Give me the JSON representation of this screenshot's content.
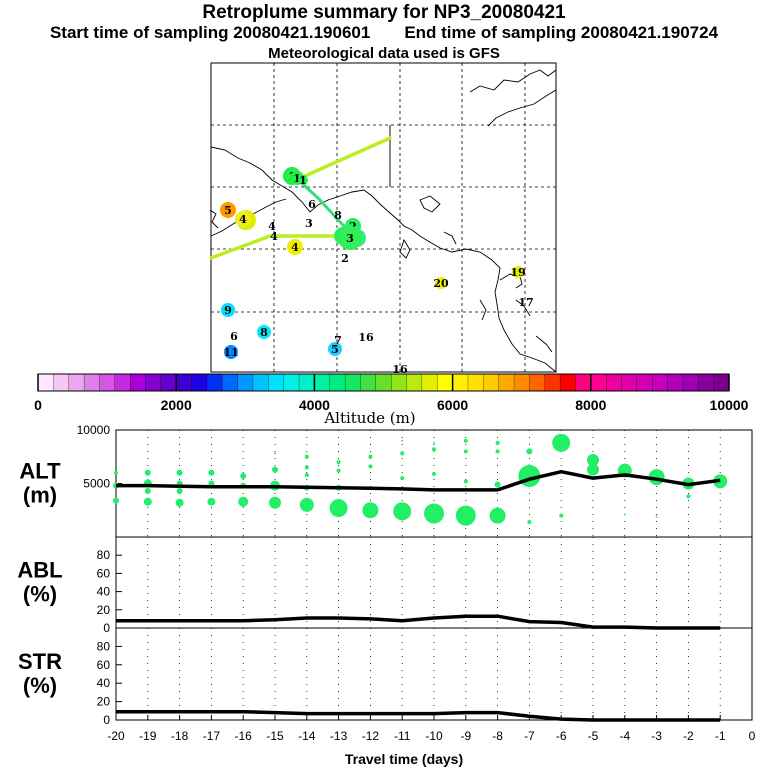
{
  "header": {
    "title": "Retroplume summary for NP3_20080421",
    "start_label": "Start time of sampling 20080421.190601",
    "end_label": "End time of sampling 20080421.190724",
    "met_label": "Meteorological data used is GFS"
  },
  "map": {
    "trajectory_numbers": [
      "1",
      "1",
      "1",
      "2",
      "2",
      "2",
      "2",
      "3",
      "3",
      "3",
      "4",
      "4",
      "4",
      "4",
      "4",
      "5",
      "5",
      "6",
      "6",
      "7",
      "8",
      "8",
      "9",
      "11",
      "16",
      "16",
      "17",
      "19",
      "20"
    ]
  },
  "colorbar": {
    "title": "Altitude (m)",
    "min": 0,
    "max": 10000,
    "ticks": [
      0,
      2000,
      4000,
      6000,
      8000,
      10000
    ],
    "tick_labels": [
      "0",
      "2000",
      "4000",
      "6000",
      "8000",
      "10000"
    ],
    "colors": [
      "#ffe8ff",
      "#f5c8f5",
      "#eaa6ef",
      "#de80e8",
      "#d257e3",
      "#c22bde",
      "#a800d8",
      "#8600d0",
      "#6400c8",
      "#3e00d0",
      "#2000e0",
      "#0030f0",
      "#0068ff",
      "#0098ff",
      "#00c4ff",
      "#00e0ff",
      "#00f0e6",
      "#00f0c8",
      "#00f0a4",
      "#00ec82",
      "#18e860",
      "#40e040",
      "#66e028",
      "#90e618",
      "#b8ec10",
      "#e0f000",
      "#ffff00",
      "#fff000",
      "#ffe000",
      "#ffcc00",
      "#ffaa00",
      "#ff8a00",
      "#ff6600",
      "#ff3300",
      "#ff0000",
      "#ff0080",
      "#ff0090",
      "#ee009a",
      "#e000a8",
      "#d200b4",
      "#c400bc",
      "#b000bc",
      "#9c00b0",
      "#8a009c",
      "#780088"
    ]
  },
  "chart_data": [
    {
      "type": "line",
      "panel": "ALT",
      "ylabel_line1": "ALT",
      "ylabel_line2": "(m)",
      "ylim": [
        0,
        10000
      ],
      "yticks": [
        5000,
        10000
      ],
      "ytick_labels": [
        "5000",
        "10000"
      ],
      "x": [
        -20,
        -19,
        -18,
        -17,
        -16,
        -15,
        -14,
        -13,
        -12,
        -11,
        -10,
        -9,
        -8,
        -7,
        -6,
        -5,
        -4,
        -3,
        -2,
        -1
      ],
      "series": [
        {
          "name": "mean altitude",
          "values": [
            4800,
            4800,
            4750,
            4700,
            4700,
            4700,
            4650,
            4600,
            4550,
            4500,
            4400,
            4400,
            4400,
            5400,
            6100,
            5500,
            5800,
            5400,
            4900,
            5300
          ]
        }
      ],
      "scatter": [
        [
          -20,
          6000,
          2
        ],
        [
          -20,
          4800,
          3
        ],
        [
          -20,
          3400,
          3
        ],
        [
          -19,
          6000,
          3
        ],
        [
          -19,
          5000,
          4
        ],
        [
          -19,
          4300,
          3
        ],
        [
          -19,
          3300,
          4
        ],
        [
          -18,
          6000,
          3
        ],
        [
          -18,
          5000,
          3
        ],
        [
          -18,
          4300,
          3
        ],
        [
          -18,
          3200,
          4
        ],
        [
          -17,
          6000,
          3
        ],
        [
          -17,
          5000,
          3
        ],
        [
          -17,
          3300,
          4
        ],
        [
          -16,
          5700,
          3
        ],
        [
          -16,
          4800,
          3
        ],
        [
          -16,
          3300,
          5
        ],
        [
          -15,
          7800,
          1
        ],
        [
          -15,
          6300,
          3
        ],
        [
          -15,
          4800,
          5
        ],
        [
          -15,
          3200,
          6
        ],
        [
          -14,
          7500,
          2
        ],
        [
          -14,
          6500,
          2
        ],
        [
          -14,
          5800,
          2
        ],
        [
          -14,
          4600,
          3
        ],
        [
          -14,
          3000,
          7
        ],
        [
          -13,
          7000,
          2
        ],
        [
          -13,
          6200,
          2
        ],
        [
          -13,
          4600,
          3
        ],
        [
          -13,
          2700,
          9
        ],
        [
          -12,
          7500,
          2
        ],
        [
          -12,
          6600,
          2
        ],
        [
          -12,
          2500,
          8
        ],
        [
          -11,
          9000,
          1
        ],
        [
          -11,
          7800,
          2
        ],
        [
          -11,
          5500,
          2
        ],
        [
          -11,
          2400,
          9
        ],
        [
          -10,
          8800,
          1
        ],
        [
          -10,
          8200,
          2
        ],
        [
          -10,
          5900,
          2
        ],
        [
          -10,
          2200,
          10
        ],
        [
          -9,
          9000,
          2
        ],
        [
          -9,
          8000,
          2
        ],
        [
          -9,
          5200,
          2
        ],
        [
          -9,
          2000,
          10
        ],
        [
          -8,
          8800,
          2
        ],
        [
          -8,
          8000,
          2
        ],
        [
          -8,
          4900,
          3
        ],
        [
          -8,
          2000,
          8
        ],
        [
          -7,
          8000,
          3
        ],
        [
          -7,
          6600,
          2
        ],
        [
          -7,
          5700,
          11
        ],
        [
          -7,
          1400,
          2
        ],
        [
          -6,
          8800,
          9
        ],
        [
          -6,
          2000,
          2
        ],
        [
          -5,
          7200,
          6
        ],
        [
          -5,
          6300,
          6
        ],
        [
          -4,
          6200,
          7
        ],
        [
          -4,
          2100,
          1
        ],
        [
          -3,
          5600,
          8
        ],
        [
          -3,
          1900,
          1
        ],
        [
          -2,
          5000,
          6
        ],
        [
          -2,
          3800,
          2
        ],
        [
          -1,
          5200,
          7
        ]
      ],
      "scatter_color": "#22ee66"
    },
    {
      "type": "line",
      "panel": "ABL",
      "ylabel_line1": "ABL",
      "ylabel_line2": "(%)",
      "ylim": [
        0,
        100
      ],
      "yticks": [
        0,
        20,
        40,
        60,
        80
      ],
      "ytick_labels": [
        "0",
        "20",
        "40",
        "60",
        "80"
      ],
      "x": [
        -20,
        -19,
        -18,
        -17,
        -16,
        -15,
        -14,
        -13,
        -12,
        -11,
        -10,
        -9,
        -8,
        -7,
        -6,
        -5,
        -4,
        -3,
        -2,
        -1
      ],
      "series": [
        {
          "name": "ABL fraction",
          "values": [
            8,
            8,
            8,
            8,
            8,
            9,
            11,
            11,
            10,
            8,
            11,
            13,
            13,
            7,
            6,
            1,
            1,
            0,
            0,
            0
          ]
        }
      ]
    },
    {
      "type": "line",
      "panel": "STR",
      "ylabel_line1": "STR",
      "ylabel_line2": "(%)",
      "ylim": [
        0,
        100
      ],
      "yticks": [
        0,
        20,
        40,
        60,
        80
      ],
      "ytick_labels": [
        "0",
        "20",
        "40",
        "60",
        "80"
      ],
      "x": [
        -20,
        -19,
        -18,
        -17,
        -16,
        -15,
        -14,
        -13,
        -12,
        -11,
        -10,
        -9,
        -8,
        -7,
        -6,
        -5,
        -4,
        -3,
        -2,
        -1
      ],
      "series": [
        {
          "name": "stratospheric fraction",
          "values": [
            9,
            9,
            9,
            9,
            9,
            8,
            7,
            7,
            7,
            7,
            7,
            8,
            8,
            4,
            1,
            0,
            0,
            0,
            0,
            0
          ]
        }
      ],
      "xlabel": "Travel time (days)",
      "xticks": [
        -20,
        -19,
        -18,
        -17,
        -16,
        -15,
        -14,
        -13,
        -12,
        -11,
        -10,
        -9,
        -8,
        -7,
        -6,
        -5,
        -4,
        -3,
        -2,
        -1,
        0
      ],
      "xtick_labels": [
        "-20",
        "-19",
        "-18",
        "-17",
        "-16",
        "-15",
        "-14",
        "-13",
        "-12",
        "-11",
        "-10",
        "-9",
        "-8",
        "-7",
        "-6",
        "-5",
        "-4",
        "-3",
        "-2",
        "-1",
        "0"
      ]
    }
  ]
}
